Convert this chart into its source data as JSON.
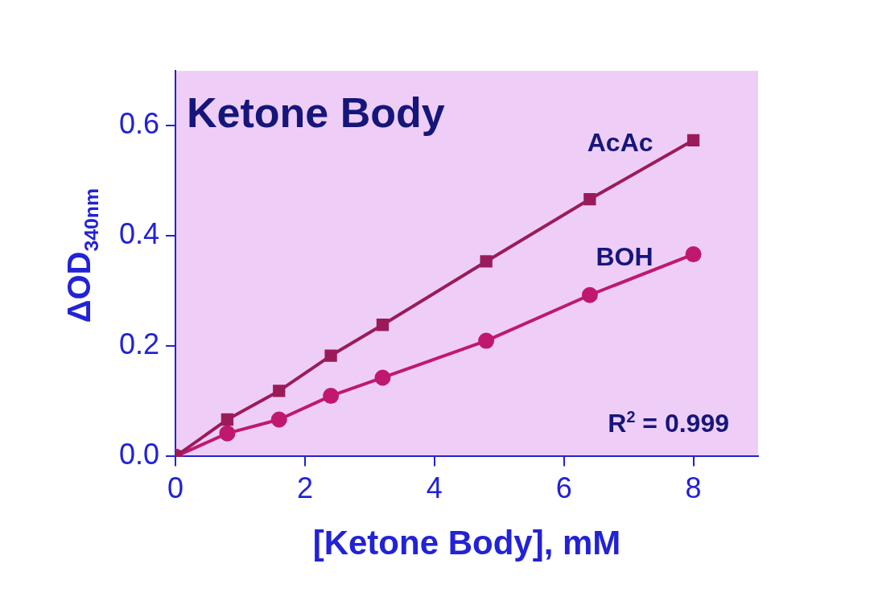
{
  "chart_data": {
    "type": "line",
    "title": "Ketone Body",
    "xlabel": "[Ketone Body], mM",
    "ylabel": "ΔOD$_{340nm}$",
    "annotations": [
      "R$^{2}$ = 0.999"
    ],
    "x": [
      0,
      0.8,
      1.6,
      2.4,
      3.2,
      4.8,
      6.4,
      8
    ],
    "series": [
      {
        "name": "AcAc",
        "color": "#9b1b5a",
        "marker": "square",
        "values": [
          0,
          0.067,
          0.119,
          0.183,
          0.239,
          0.354,
          0.467,
          0.574
        ]
      },
      {
        "name": "BOH",
        "color": "#c0186e",
        "marker": "circle",
        "values": [
          0,
          0.042,
          0.067,
          0.11,
          0.143,
          0.21,
          0.293,
          0.367
        ]
      }
    ],
    "xlim": [
      0,
      9
    ],
    "xticks": [
      0,
      2,
      4,
      6,
      8
    ],
    "ylim": [
      0,
      0.7
    ],
    "yticks": [
      {
        "value": 0,
        "label": "0.0"
      },
      {
        "value": 0.2,
        "label": "0.2"
      },
      {
        "value": 0.4,
        "label": "0.4"
      },
      {
        "value": 0.6,
        "label": "0.6"
      }
    ],
    "grid": false,
    "legend": false
  }
}
